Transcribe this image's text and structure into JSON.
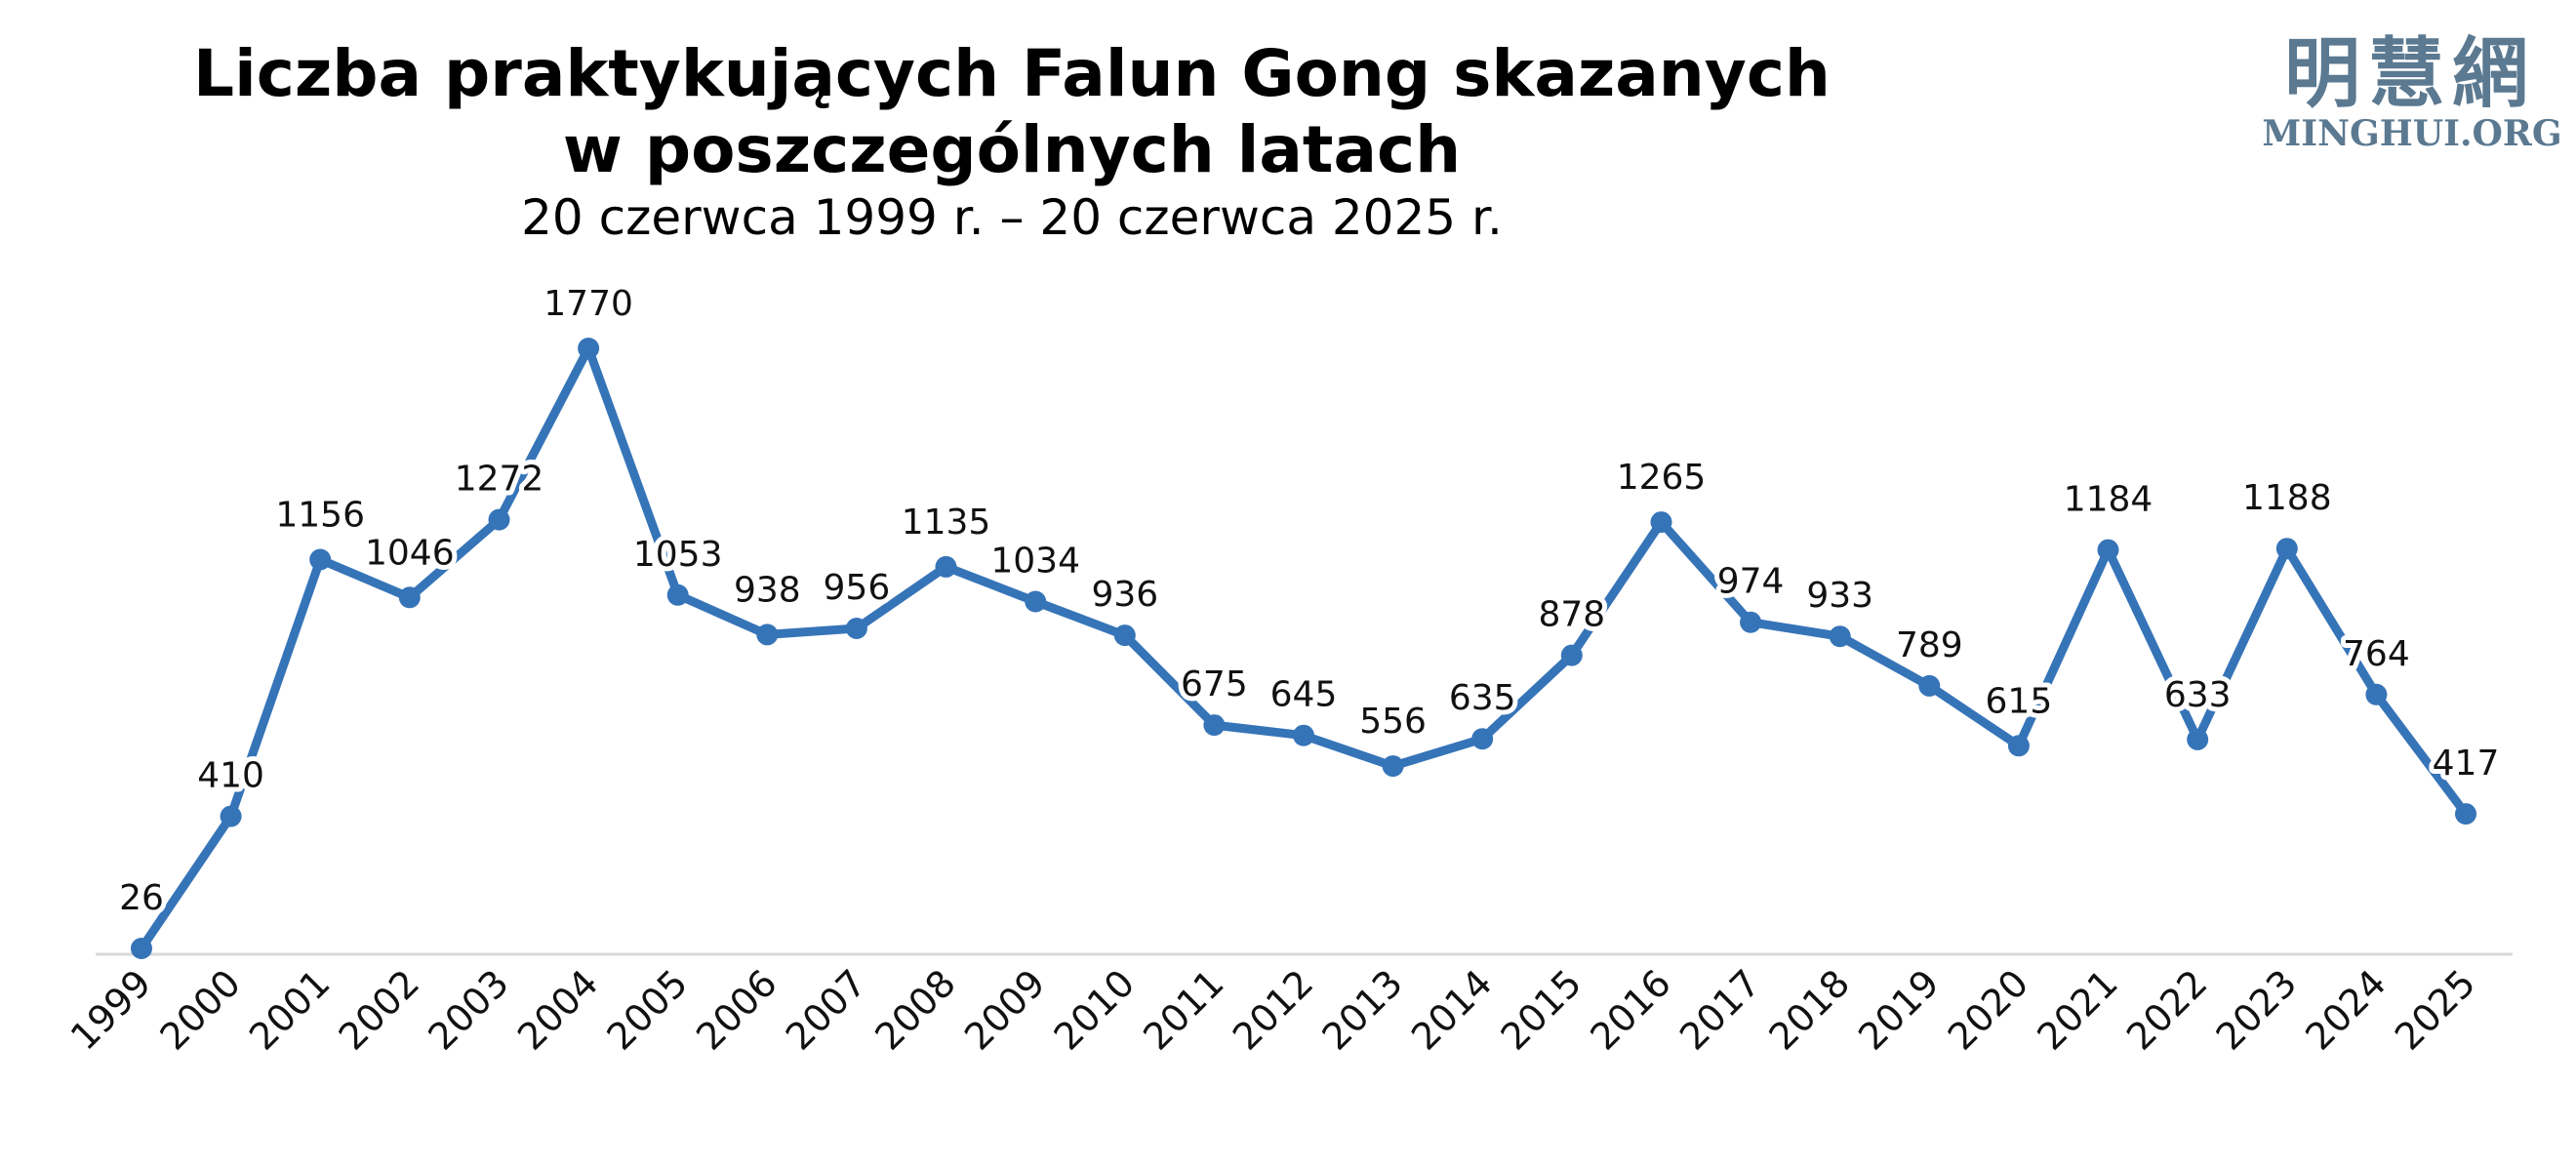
{
  "colors": {
    "series": "#3674b8",
    "label_halo": "#ffffff",
    "axis": "#d9d9d9",
    "logo": "#5b7991"
  },
  "logo": {
    "chinese": "明慧網",
    "latin": "MINGHUI.ORG"
  },
  "chart_data": {
    "type": "line",
    "title_line1": "Liczba praktykujących Falun Gong skazanych",
    "title_line2": "w poszczególnych latach",
    "subtitle": "20 czerwca 1999 r. – 20 czerwca 2025 r.",
    "xlabel": "",
    "ylabel": "",
    "ylim": [
      0,
      1900
    ],
    "grid": false,
    "legend": "none",
    "data_labels": true,
    "markers": true,
    "categories": [
      "1999",
      "2000",
      "2001",
      "2002",
      "2003",
      "2004",
      "2005",
      "2006",
      "2007",
      "2008",
      "2009",
      "2010",
      "2011",
      "2012",
      "2013",
      "2014",
      "2015",
      "2016",
      "2017",
      "2018",
      "2019",
      "2020",
      "2021",
      "2022",
      "2023",
      "2024",
      "2025"
    ],
    "values": [
      26,
      410,
      1156,
      1046,
      1272,
      1770,
      1053,
      938,
      956,
      1135,
      1034,
      936,
      675,
      645,
      556,
      635,
      878,
      1265,
      974,
      933,
      789,
      615,
      1184,
      633,
      1188,
      764,
      417
    ]
  }
}
